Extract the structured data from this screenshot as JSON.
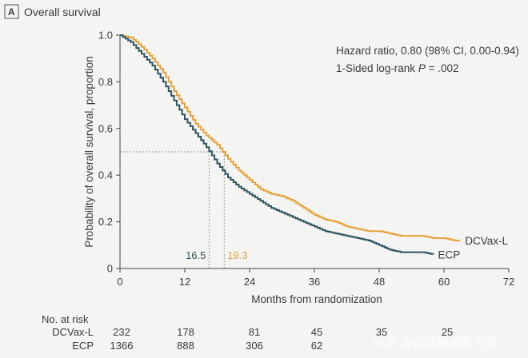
{
  "panel": {
    "letter": "A",
    "title": "Overall survival"
  },
  "stats": {
    "hazard_ratio": "Hazard ratio, 0.80 (98% CI, 0.00-0.94)",
    "logrank_prefix": "1-Sided log-rank ",
    "logrank_p": "P",
    "logrank_suffix": " = .002"
  },
  "colors": {
    "dcvax": "#e8a23a",
    "ecp": "#2f5560",
    "axis": "#444444",
    "guide": "#999999"
  },
  "chart_data": {
    "type": "line",
    "title": "Overall survival",
    "xlabel": "Months from randomization",
    "ylabel": "Probability of overall survival, proportion",
    "xlim": [
      0,
      72
    ],
    "ylim": [
      0,
      1.0
    ],
    "xticks": [
      0,
      12,
      24,
      36,
      48,
      60,
      72
    ],
    "yticks": [
      0,
      0.2,
      0.4,
      0.6,
      0.8,
      1.0
    ],
    "ytick_labels": [
      "0",
      "0.2",
      "0.4",
      "0.6",
      "0.8",
      "1.0"
    ],
    "grid": false,
    "reference_line": 0.5,
    "medians": [
      {
        "series": "DCVax-L",
        "x": 19.3,
        "label": "19.3"
      },
      {
        "series": "ECP",
        "x": 16.5,
        "label": "16.5"
      }
    ],
    "series": [
      {
        "name": "DCVax-L",
        "color": "#e8a23a",
        "x": [
          0,
          2,
          4,
          6,
          8,
          10,
          12,
          14,
          16,
          18,
          20,
          22,
          24,
          26,
          28,
          30,
          32,
          34,
          36,
          38,
          40,
          42,
          44,
          46,
          48,
          50,
          52,
          54,
          56,
          58,
          60,
          62,
          63
        ],
        "y": [
          1.0,
          0.99,
          0.95,
          0.9,
          0.84,
          0.76,
          0.69,
          0.62,
          0.57,
          0.53,
          0.47,
          0.42,
          0.38,
          0.34,
          0.32,
          0.31,
          0.29,
          0.26,
          0.23,
          0.21,
          0.2,
          0.18,
          0.17,
          0.16,
          0.16,
          0.15,
          0.14,
          0.14,
          0.14,
          0.13,
          0.13,
          0.12,
          0.12
        ]
      },
      {
        "name": "ECP",
        "color": "#2f5560",
        "x": [
          0,
          2,
          4,
          6,
          8,
          10,
          12,
          14,
          16,
          18,
          20,
          22,
          24,
          26,
          28,
          30,
          32,
          34,
          36,
          38,
          40,
          42,
          44,
          46,
          48,
          50,
          52,
          54,
          56,
          58
        ],
        "y": [
          1.0,
          0.97,
          0.92,
          0.87,
          0.8,
          0.72,
          0.64,
          0.58,
          0.52,
          0.45,
          0.39,
          0.35,
          0.32,
          0.29,
          0.26,
          0.24,
          0.22,
          0.2,
          0.18,
          0.16,
          0.15,
          0.14,
          0.13,
          0.12,
          0.1,
          0.08,
          0.07,
          0.07,
          0.07,
          0.06
        ]
      }
    ]
  },
  "risk_table": {
    "heading": "No. at risk",
    "rows": [
      {
        "label": "DCVax-L",
        "values": [
          "232",
          "178",
          "81",
          "45",
          "35",
          "25"
        ]
      },
      {
        "label": "ECP",
        "values": [
          "1366",
          "888",
          "306",
          "62",
          "",
          ""
        ]
      }
    ]
  },
  "watermark": "头条 @全球肿瘤医生网"
}
